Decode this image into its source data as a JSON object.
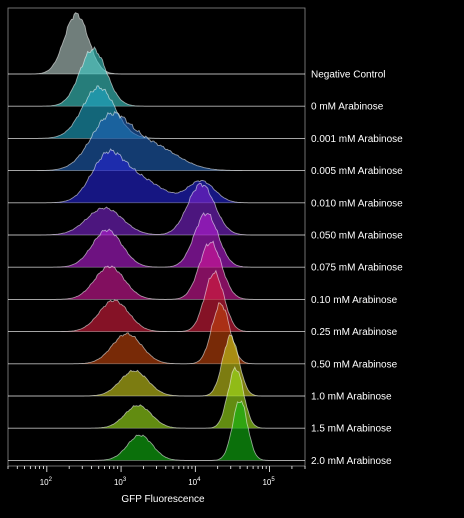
{
  "chart_data": {
    "type": "area",
    "xscale": "log",
    "xlim": [
      30,
      300000
    ],
    "xlabel": "GFP Fluorescence",
    "xticks": [
      {
        "value": 100,
        "base": "10",
        "exp": "2"
      },
      {
        "value": 1000,
        "base": "10",
        "exp": "3"
      },
      {
        "value": 10000,
        "base": "10",
        "exp": "4"
      },
      {
        "value": 100000,
        "base": "10",
        "exp": "5"
      }
    ],
    "layout": "ridgeline",
    "grid": false,
    "series": [
      {
        "name": "Negative Control",
        "color": "#b4ccc6",
        "peaks": [
          {
            "center": 250,
            "amplitude": 1.0,
            "width": 0.16
          }
        ],
        "noise": 0.05
      },
      {
        "name": "0 mM Arabinose",
        "color": "#3ec9c5",
        "peaks": [
          {
            "center": 420,
            "amplitude": 0.95,
            "width": 0.18
          }
        ],
        "noise": 0.05
      },
      {
        "name": "0.001 mM Arabinose",
        "color": "#1ea4c4",
        "peaks": [
          {
            "center": 500,
            "amplitude": 0.85,
            "width": 0.22
          }
        ],
        "noise": 0.05
      },
      {
        "name": "0.005 mM Arabinose",
        "color": "#1f5fb4",
        "peaks": [
          {
            "center": 700,
            "amplitude": 0.82,
            "width": 0.26
          },
          {
            "center": 2500,
            "amplitude": 0.42,
            "width": 0.35
          }
        ],
        "noise": 0.05
      },
      {
        "name": "0.010 mM Arabinose",
        "color": "#2424d2",
        "peaks": [
          {
            "center": 650,
            "amplitude": 0.72,
            "width": 0.22
          },
          {
            "center": 1800,
            "amplitude": 0.38,
            "width": 0.3
          },
          {
            "center": 12000,
            "amplitude": 0.36,
            "width": 0.18
          }
        ],
        "noise": 0.05
      },
      {
        "name": "0.050 mM Arabinose",
        "color": "#7a24cc",
        "peaks": [
          {
            "center": 600,
            "amplitude": 0.45,
            "width": 0.24
          },
          {
            "center": 12000,
            "amplitude": 0.85,
            "width": 0.18
          }
        ],
        "noise": 0.05
      },
      {
        "name": "0.075 mM Arabinose",
        "color": "#b21dd0",
        "peaks": [
          {
            "center": 650,
            "amplitude": 0.62,
            "width": 0.2
          },
          {
            "center": 14000,
            "amplitude": 0.9,
            "width": 0.16
          }
        ],
        "noise": 0.05
      },
      {
        "name": "0.10 mM Arabinose",
        "color": "#d2189a",
        "peaks": [
          {
            "center": 700,
            "amplitude": 0.55,
            "width": 0.2
          },
          {
            "center": 16000,
            "amplitude": 0.95,
            "width": 0.15
          }
        ],
        "noise": 0.05
      },
      {
        "name": "0.25 mM Arabinose",
        "color": "#d61d3e",
        "peaks": [
          {
            "center": 800,
            "amplitude": 0.52,
            "width": 0.2
          },
          {
            "center": 18000,
            "amplitude": 0.98,
            "width": 0.13
          }
        ],
        "noise": 0.05
      },
      {
        "name": "0.50 mM Arabinose",
        "color": "#c2440c",
        "peaks": [
          {
            "center": 1200,
            "amplitude": 0.5,
            "width": 0.2
          },
          {
            "center": 22000,
            "amplitude": 1.0,
            "width": 0.12
          }
        ],
        "noise": 0.05
      },
      {
        "name": "1.0 mM Arabinose",
        "color": "#c8c81b",
        "peaks": [
          {
            "center": 1500,
            "amplitude": 0.42,
            "width": 0.19
          },
          {
            "center": 30000,
            "amplitude": 1.0,
            "width": 0.11
          }
        ],
        "noise": 0.05
      },
      {
        "name": "1.5 mM Arabinose",
        "color": "#9ee21c",
        "peaks": [
          {
            "center": 1700,
            "amplitude": 0.38,
            "width": 0.18
          },
          {
            "center": 35000,
            "amplitude": 1.0,
            "width": 0.105
          }
        ],
        "noise": 0.05
      },
      {
        "name": "2.0 mM Arabinose",
        "color": "#12b412",
        "peaks": [
          {
            "center": 1800,
            "amplitude": 0.42,
            "width": 0.17
          },
          {
            "center": 40000,
            "amplitude": 1.0,
            "width": 0.1
          }
        ],
        "noise": 0.05
      }
    ]
  }
}
